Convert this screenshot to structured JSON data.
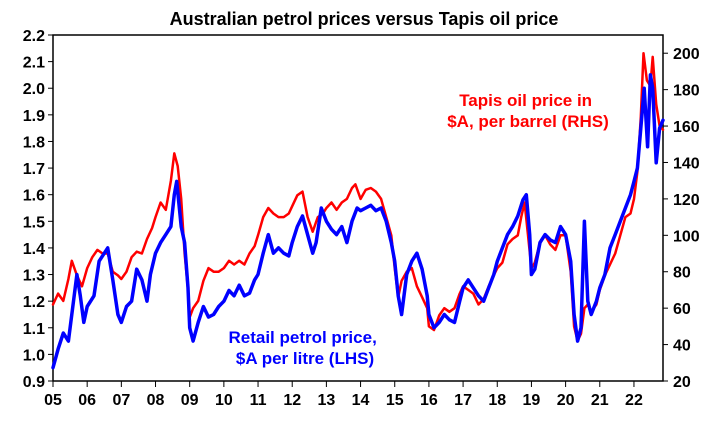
{
  "chart_data": {
    "type": "line",
    "title": "Australian petrol prices versus Tapis oil price",
    "x_ticks": [
      "05",
      "06",
      "07",
      "08",
      "09",
      "10",
      "11",
      "12",
      "13",
      "14",
      "15",
      "16",
      "17",
      "18",
      "19",
      "20",
      "21",
      "22"
    ],
    "x_range": [
      2005.0,
      2022.85
    ],
    "y_left": {
      "range": [
        0.9,
        2.2
      ],
      "ticks": [
        "0.9",
        "1.0",
        "1.1",
        "1.2",
        "1.3",
        "1.4",
        "1.5",
        "1.6",
        "1.7",
        "1.8",
        "1.9",
        "2.0",
        "2.1",
        "2.2"
      ]
    },
    "y_right": {
      "range": [
        20,
        210
      ],
      "ticks": [
        "20",
        "40",
        "60",
        "80",
        "100",
        "120",
        "140",
        "160",
        "180",
        "200"
      ]
    },
    "grid": false,
    "series": [
      {
        "name": "Retail petrol price, $A per litre (LHS)",
        "color": "#0000ff",
        "axis": "left",
        "points": [
          [
            2005.0,
            0.95
          ],
          [
            2005.15,
            1.02
          ],
          [
            2005.3,
            1.08
          ],
          [
            2005.45,
            1.05
          ],
          [
            2005.6,
            1.2
          ],
          [
            2005.7,
            1.3
          ],
          [
            2005.8,
            1.22
          ],
          [
            2005.9,
            1.12
          ],
          [
            2006.0,
            1.18
          ],
          [
            2006.2,
            1.22
          ],
          [
            2006.35,
            1.35
          ],
          [
            2006.5,
            1.38
          ],
          [
            2006.6,
            1.4
          ],
          [
            2006.75,
            1.28
          ],
          [
            2006.9,
            1.15
          ],
          [
            2007.0,
            1.12
          ],
          [
            2007.15,
            1.18
          ],
          [
            2007.3,
            1.2
          ],
          [
            2007.45,
            1.32
          ],
          [
            2007.6,
            1.28
          ],
          [
            2007.75,
            1.2
          ],
          [
            2007.85,
            1.3
          ],
          [
            2008.0,
            1.38
          ],
          [
            2008.15,
            1.42
          ],
          [
            2008.3,
            1.45
          ],
          [
            2008.45,
            1.48
          ],
          [
            2008.55,
            1.6
          ],
          [
            2008.62,
            1.65
          ],
          [
            2008.75,
            1.48
          ],
          [
            2008.85,
            1.42
          ],
          [
            2008.95,
            1.25
          ],
          [
            2009.0,
            1.1
          ],
          [
            2009.1,
            1.05
          ],
          [
            2009.25,
            1.12
          ],
          [
            2009.4,
            1.18
          ],
          [
            2009.55,
            1.14
          ],
          [
            2009.7,
            1.15
          ],
          [
            2009.85,
            1.18
          ],
          [
            2010.0,
            1.2
          ],
          [
            2010.15,
            1.24
          ],
          [
            2010.3,
            1.22
          ],
          [
            2010.45,
            1.26
          ],
          [
            2010.6,
            1.22
          ],
          [
            2010.75,
            1.23
          ],
          [
            2010.9,
            1.28
          ],
          [
            2011.0,
            1.3
          ],
          [
            2011.15,
            1.38
          ],
          [
            2011.3,
            1.45
          ],
          [
            2011.45,
            1.38
          ],
          [
            2011.6,
            1.4
          ],
          [
            2011.75,
            1.38
          ],
          [
            2011.9,
            1.37
          ],
          [
            2012.0,
            1.42
          ],
          [
            2012.15,
            1.48
          ],
          [
            2012.3,
            1.52
          ],
          [
            2012.45,
            1.45
          ],
          [
            2012.6,
            1.38
          ],
          [
            2012.7,
            1.42
          ],
          [
            2012.85,
            1.55
          ],
          [
            2013.0,
            1.5
          ],
          [
            2013.15,
            1.47
          ],
          [
            2013.3,
            1.45
          ],
          [
            2013.45,
            1.48
          ],
          [
            2013.6,
            1.42
          ],
          [
            2013.75,
            1.5
          ],
          [
            2013.9,
            1.55
          ],
          [
            2014.0,
            1.54
          ],
          [
            2014.15,
            1.55
          ],
          [
            2014.3,
            1.56
          ],
          [
            2014.45,
            1.54
          ],
          [
            2014.6,
            1.55
          ],
          [
            2014.75,
            1.5
          ],
          [
            2014.9,
            1.42
          ],
          [
            2015.0,
            1.35
          ],
          [
            2015.1,
            1.22
          ],
          [
            2015.2,
            1.15
          ],
          [
            2015.35,
            1.3
          ],
          [
            2015.5,
            1.35
          ],
          [
            2015.65,
            1.38
          ],
          [
            2015.8,
            1.32
          ],
          [
            2015.95,
            1.22
          ],
          [
            2016.0,
            1.15
          ],
          [
            2016.15,
            1.1
          ],
          [
            2016.3,
            1.12
          ],
          [
            2016.45,
            1.15
          ],
          [
            2016.6,
            1.13
          ],
          [
            2016.75,
            1.12
          ],
          [
            2016.9,
            1.2
          ],
          [
            2017.0,
            1.25
          ],
          [
            2017.15,
            1.28
          ],
          [
            2017.3,
            1.25
          ],
          [
            2017.45,
            1.22
          ],
          [
            2017.6,
            1.2
          ],
          [
            2017.75,
            1.25
          ],
          [
            2017.9,
            1.3
          ],
          [
            2018.0,
            1.35
          ],
          [
            2018.15,
            1.4
          ],
          [
            2018.3,
            1.45
          ],
          [
            2018.45,
            1.48
          ],
          [
            2018.6,
            1.52
          ],
          [
            2018.75,
            1.58
          ],
          [
            2018.85,
            1.6
          ],
          [
            2018.95,
            1.45
          ],
          [
            2019.0,
            1.3
          ],
          [
            2019.1,
            1.32
          ],
          [
            2019.25,
            1.42
          ],
          [
            2019.4,
            1.45
          ],
          [
            2019.55,
            1.43
          ],
          [
            2019.7,
            1.42
          ],
          [
            2019.85,
            1.48
          ],
          [
            2020.0,
            1.45
          ],
          [
            2020.15,
            1.35
          ],
          [
            2020.25,
            1.15
          ],
          [
            2020.35,
            1.05
          ],
          [
            2020.45,
            1.1
          ],
          [
            2020.55,
            1.5
          ],
          [
            2020.65,
            1.2
          ],
          [
            2020.75,
            1.15
          ],
          [
            2020.9,
            1.2
          ],
          [
            2021.0,
            1.25
          ],
          [
            2021.15,
            1.3
          ],
          [
            2021.3,
            1.4
          ],
          [
            2021.45,
            1.45
          ],
          [
            2021.6,
            1.5
          ],
          [
            2021.75,
            1.55
          ],
          [
            2021.9,
            1.6
          ],
          [
            2022.0,
            1.65
          ],
          [
            2022.1,
            1.7
          ],
          [
            2022.2,
            1.85
          ],
          [
            2022.3,
            2.0
          ],
          [
            2022.4,
            1.78
          ],
          [
            2022.48,
            2.05
          ],
          [
            2022.55,
            2.0
          ],
          [
            2022.65,
            1.72
          ],
          [
            2022.75,
            1.85
          ],
          [
            2022.85,
            1.88
          ]
        ]
      },
      {
        "name": "Tapis oil price in $A, per barrel (RHS)",
        "color": "#ff0000",
        "axis": "right",
        "points": [
          [
            2005.0,
            62
          ],
          [
            2005.15,
            68
          ],
          [
            2005.3,
            64
          ],
          [
            2005.45,
            76
          ],
          [
            2005.55,
            86
          ],
          [
            2005.7,
            78
          ],
          [
            2005.85,
            72
          ],
          [
            2006.0,
            82
          ],
          [
            2006.15,
            88
          ],
          [
            2006.3,
            92
          ],
          [
            2006.45,
            90
          ],
          [
            2006.6,
            90
          ],
          [
            2006.75,
            80
          ],
          [
            2006.9,
            78
          ],
          [
            2007.0,
            76
          ],
          [
            2007.15,
            80
          ],
          [
            2007.3,
            88
          ],
          [
            2007.45,
            91
          ],
          [
            2007.6,
            90
          ],
          [
            2007.75,
            98
          ],
          [
            2007.9,
            104
          ],
          [
            2008.0,
            110
          ],
          [
            2008.15,
            118
          ],
          [
            2008.3,
            114
          ],
          [
            2008.45,
            130
          ],
          [
            2008.55,
            145
          ],
          [
            2008.65,
            138
          ],
          [
            2008.75,
            120
          ],
          [
            2008.85,
            90
          ],
          [
            2008.95,
            70
          ],
          [
            2009.0,
            55
          ],
          [
            2009.1,
            60
          ],
          [
            2009.25,
            64
          ],
          [
            2009.4,
            75
          ],
          [
            2009.55,
            82
          ],
          [
            2009.7,
            80
          ],
          [
            2009.85,
            80
          ],
          [
            2010.0,
            82
          ],
          [
            2010.15,
            86
          ],
          [
            2010.3,
            84
          ],
          [
            2010.45,
            86
          ],
          [
            2010.6,
            84
          ],
          [
            2010.75,
            90
          ],
          [
            2010.9,
            94
          ],
          [
            2011.0,
            100
          ],
          [
            2011.15,
            110
          ],
          [
            2011.3,
            115
          ],
          [
            2011.45,
            112
          ],
          [
            2011.6,
            110
          ],
          [
            2011.75,
            110
          ],
          [
            2011.9,
            112
          ],
          [
            2012.0,
            116
          ],
          [
            2012.15,
            122
          ],
          [
            2012.3,
            124
          ],
          [
            2012.45,
            110
          ],
          [
            2012.6,
            102
          ],
          [
            2012.75,
            110
          ],
          [
            2012.9,
            112
          ],
          [
            2013.0,
            115
          ],
          [
            2013.15,
            118
          ],
          [
            2013.3,
            114
          ],
          [
            2013.45,
            118
          ],
          [
            2013.6,
            120
          ],
          [
            2013.75,
            126
          ],
          [
            2013.85,
            128
          ],
          [
            2014.0,
            120
          ],
          [
            2014.15,
            125
          ],
          [
            2014.3,
            126
          ],
          [
            2014.45,
            124
          ],
          [
            2014.6,
            120
          ],
          [
            2014.75,
            110
          ],
          [
            2014.9,
            100
          ],
          [
            2015.0,
            82
          ],
          [
            2015.1,
            66
          ],
          [
            2015.2,
            75
          ],
          [
            2015.35,
            80
          ],
          [
            2015.5,
            82
          ],
          [
            2015.65,
            72
          ],
          [
            2015.8,
            66
          ],
          [
            2015.95,
            60
          ],
          [
            2016.0,
            50
          ],
          [
            2016.15,
            48
          ],
          [
            2016.3,
            56
          ],
          [
            2016.45,
            60
          ],
          [
            2016.6,
            58
          ],
          [
            2016.75,
            60
          ],
          [
            2016.9,
            68
          ],
          [
            2017.0,
            72
          ],
          [
            2017.15,
            70
          ],
          [
            2017.3,
            68
          ],
          [
            2017.45,
            62
          ],
          [
            2017.6,
            65
          ],
          [
            2017.75,
            72
          ],
          [
            2017.9,
            78
          ],
          [
            2018.0,
            82
          ],
          [
            2018.15,
            85
          ],
          [
            2018.3,
            95
          ],
          [
            2018.45,
            98
          ],
          [
            2018.6,
            100
          ],
          [
            2018.7,
            110
          ],
          [
            2018.8,
            118
          ],
          [
            2018.9,
            100
          ],
          [
            2019.0,
            82
          ],
          [
            2019.1,
            85
          ],
          [
            2019.25,
            96
          ],
          [
            2019.4,
            100
          ],
          [
            2019.55,
            95
          ],
          [
            2019.7,
            92
          ],
          [
            2019.85,
            100
          ],
          [
            2020.0,
            100
          ],
          [
            2020.15,
            80
          ],
          [
            2020.25,
            50
          ],
          [
            2020.35,
            42
          ],
          [
            2020.45,
            46
          ],
          [
            2020.55,
            60
          ],
          [
            2020.65,
            62
          ],
          [
            2020.75,
            58
          ],
          [
            2020.9,
            62
          ],
          [
            2021.0,
            70
          ],
          [
            2021.15,
            78
          ],
          [
            2021.3,
            84
          ],
          [
            2021.45,
            90
          ],
          [
            2021.6,
            100
          ],
          [
            2021.75,
            110
          ],
          [
            2021.9,
            112
          ],
          [
            2022.0,
            120
          ],
          [
            2022.1,
            135
          ],
          [
            2022.2,
            165
          ],
          [
            2022.28,
            200
          ],
          [
            2022.38,
            185
          ],
          [
            2022.48,
            182
          ],
          [
            2022.55,
            198
          ],
          [
            2022.65,
            172
          ],
          [
            2022.75,
            160
          ],
          [
            2022.85,
            158
          ]
        ]
      }
    ],
    "annotations": [
      {
        "lines": [
          "Tapis oil price in",
          "$A, per barrel (RHS)"
        ],
        "color": "#ff0000"
      },
      {
        "lines": [
          "Retail petrol price,",
          "$A per litre (LHS)"
        ],
        "color": "#0000ff"
      }
    ]
  }
}
